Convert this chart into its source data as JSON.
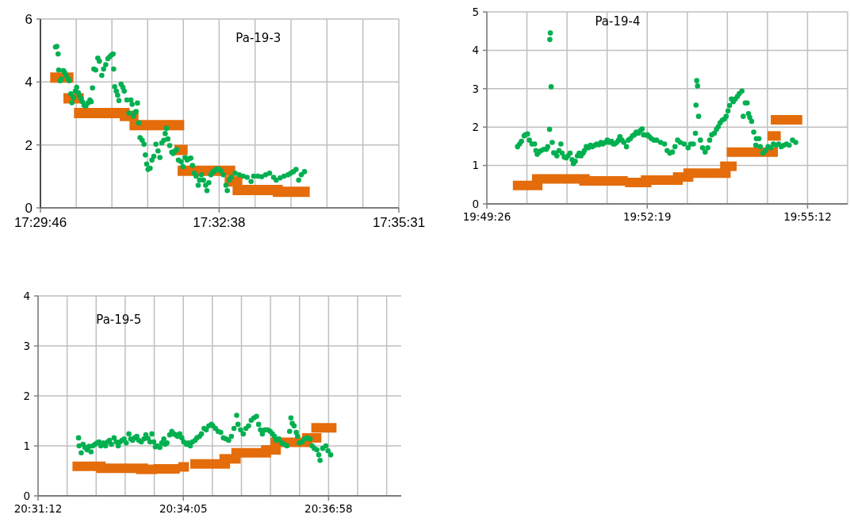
{
  "chart_data": [
    {
      "type": "scatter",
      "annotations": [
        "Pa-19-3"
      ],
      "grid": true,
      "xlim": [
        17.49611,
        17.59194
      ],
      "ylim": [
        0,
        6
      ],
      "yticks": [
        0,
        2,
        4,
        6
      ],
      "xticks": [
        {
          "value": 17.49611,
          "label": "17:29:46"
        },
        {
          "value": 17.50567,
          "label": null
        },
        {
          "value": 17.51522,
          "label": null
        },
        {
          "value": 17.52478,
          "label": null
        },
        {
          "value": 17.53433,
          "label": null
        },
        {
          "value": 17.54389,
          "label": "17:32:38"
        },
        {
          "value": 17.5535,
          "label": null
        },
        {
          "value": 17.56311,
          "label": null
        },
        {
          "value": 17.57272,
          "label": null
        },
        {
          "value": 17.58233,
          "label": null
        },
        {
          "value": 17.59194,
          "label": "17:35:31"
        }
      ],
      "series": [
        {
          "type": "line",
          "marker": "none",
          "color": "#e46c0a",
          "x": [
            17.49872,
            17.50494
          ],
          "values": [
            4.14,
            4.14
          ]
        },
        {
          "type": "line",
          "marker": "none",
          "color": "#e46c0a",
          "x": [
            17.50226,
            17.5077
          ],
          "values": [
            3.48,
            3.48
          ]
        },
        {
          "type": "line",
          "marker": "none",
          "color": "#e46c0a",
          "x": [
            17.50509,
            17.51993
          ],
          "values": [
            3.01,
            3.01
          ]
        },
        {
          "type": "line",
          "marker": "none",
          "color": "#e46c0a",
          "x": [
            17.51731,
            17.52233
          ],
          "values": [
            2.92,
            2.92
          ]
        },
        {
          "type": "line",
          "marker": "none",
          "color": "#e46c0a",
          "x": [
            17.51993,
            17.53455
          ],
          "values": [
            2.63,
            2.63
          ]
        },
        {
          "type": "line",
          "marker": "none",
          "color": "#e46c0a",
          "x": [
            17.53194,
            17.53547
          ],
          "values": [
            1.84,
            1.84
          ]
        },
        {
          "type": "line",
          "marker": "none",
          "color": "#e46c0a",
          "x": [
            17.53279,
            17.54819
          ],
          "values": [
            1.18,
            1.18
          ]
        },
        {
          "type": "line",
          "marker": "none",
          "color": "#e46c0a",
          "x": [
            17.54537,
            17.5501
          ],
          "values": [
            0.84,
            0.84
          ]
        },
        {
          "type": "line",
          "marker": "none",
          "color": "#e46c0a",
          "x": [
            17.54749,
            17.56091
          ],
          "values": [
            0.57,
            0.57
          ]
        },
        {
          "type": "line",
          "marker": "none",
          "color": "#e46c0a",
          "x": [
            17.55823,
            17.56812
          ],
          "values": [
            0.51,
            0.51
          ]
        },
        {
          "marker": "circle",
          "color": "#00b050",
          "x": [
            17.50014,
            17.50049,
            17.50084,
            17.50099,
            17.50141,
            17.50169,
            17.50226,
            17.50261,
            17.50297,
            17.50353,
            17.50381,
            17.50424,
            17.50452,
            17.50494,
            17.50544,
            17.50579,
            17.50622,
            17.5065,
            17.50692,
            17.50735,
            17.50777,
            17.50827,
            17.50876,
            17.50933,
            17.50968,
            17.51003,
            17.51039,
            17.51088,
            17.51145,
            17.51187,
            17.51251,
            17.513,
            17.51357,
            17.51413,
            17.51463,
            17.51512,
            17.51554,
            17.51569,
            17.51597,
            17.51639,
            17.51675,
            17.5171,
            17.51766,
            17.51816,
            17.51851,
            17.51922,
            17.51978,
            17.52028,
            17.52063,
            17.52099,
            17.52134,
            17.52169,
            17.52205,
            17.5224,
            17.52275,
            17.52332,
            17.52381,
            17.52417,
            17.52452,
            17.52487,
            17.52544,
            17.52593,
            17.52643,
            17.52699,
            17.52756,
            17.52805,
            17.52855,
            17.52911,
            17.52947,
            17.52982,
            17.53017,
            17.53067,
            17.53123,
            17.53159,
            17.53208,
            17.53251,
            17.533,
            17.53371,
            17.5342,
            17.53477,
            17.53533,
            17.53583,
            17.53632,
            17.53675,
            17.53724,
            17.53773,
            17.5383,
            17.53865,
            17.53915,
            17.53971,
            17.54028,
            17.54063,
            17.54113,
            17.54169,
            17.54219,
            17.54268,
            17.54325,
            17.54395,
            17.54431,
            17.54501,
            17.54572,
            17.54607,
            17.54664,
            17.54713,
            17.54819,
            17.54925,
            17.55031,
            17.55137,
            17.55243,
            17.55314,
            17.5542,
            17.55526,
            17.55632,
            17.55738,
            17.55844,
            17.55915,
            17.56021,
            17.56127,
            17.56233,
            17.56303,
            17.56374,
            17.56445,
            17.56515,
            17.56586,
            17.56671
          ],
          "values": [
            5.11,
            5.13,
            4.89,
            4.38,
            4.04,
            4.09,
            4.36,
            4.3,
            4.21,
            4.09,
            4.04,
            3.62,
            3.34,
            3.5,
            3.71,
            3.83,
            3.66,
            3.58,
            3.48,
            3.37,
            3.26,
            3.24,
            3.33,
            3.43,
            3.37,
            3.81,
            4.41,
            4.38,
            4.76,
            4.66,
            4.21,
            4.41,
            4.55,
            4.74,
            4.8,
            4.86,
            4.89,
            4.41,
            3.85,
            3.71,
            3.58,
            3.41,
            3.93,
            3.83,
            3.71,
            3.43,
            3.01,
            3.43,
            3.29,
            2.91,
            3.03,
            3.06,
            3.33,
            2.7,
            2.23,
            2.15,
            2.02,
            1.68,
            1.39,
            1.22,
            1.26,
            1.52,
            1.64,
            2.02,
            1.81,
            1.6,
            2.06,
            2.15,
            2.36,
            2.53,
            2.19,
            1.98,
            1.77,
            1.73,
            1.81,
            1.85,
            1.52,
            1.47,
            1.31,
            1.6,
            1.52,
            1.56,
            1.58,
            1.35,
            1.1,
            1.01,
            0.72,
            0.88,
            1.05,
            0.88,
            0.72,
            0.55,
            0.8,
            1.05,
            1.14,
            1.18,
            1.24,
            1.22,
            1.18,
            1.05,
            0.72,
            0.55,
            0.88,
            0.97,
            1.1,
            1.05,
            1.01,
            0.97,
            0.84,
            1.01,
            1.01,
            0.99,
            1.05,
            1.1,
            0.97,
            0.88,
            0.95,
            1.01,
            1.05,
            1.1,
            1.15,
            1.22,
            0.88,
            1.05,
            1.15
          ]
        }
      ]
    },
    {
      "type": "scatter",
      "annotations": [
        "Pa-19-4"
      ],
      "grid": true,
      "xlim": [
        19.82389,
        19.93201
      ],
      "ylim": [
        0,
        5
      ],
      "yticks": [
        0,
        1,
        2,
        3,
        4,
        5
      ],
      "xticks": [
        {
          "value": 19.82389,
          "label": "19:49:26"
        },
        {
          "value": 19.8359,
          "label": null
        },
        {
          "value": 19.84792,
          "label": null
        },
        {
          "value": 19.85993,
          "label": null
        },
        {
          "value": 19.87194,
          "label": "19:52:19"
        },
        {
          "value": 19.88396,
          "label": null
        },
        {
          "value": 19.89597,
          "label": null
        },
        {
          "value": 19.90799,
          "label": null
        },
        {
          "value": 19.92,
          "label": "19:55:12"
        },
        {
          "value": 19.93201,
          "label": null
        }
      ],
      "series": [
        {
          "type": "line",
          "marker": "none",
          "color": "#e46c0a",
          "x": [
            19.83168,
            19.84056
          ],
          "values": [
            0.48,
            0.48
          ]
        },
        {
          "type": "line",
          "marker": "none",
          "color": "#e46c0a",
          "x": [
            19.83742,
            19.85472
          ],
          "values": [
            0.65,
            0.65
          ]
        },
        {
          "type": "line",
          "marker": "none",
          "color": "#e46c0a",
          "x": [
            19.85157,
            19.86612
          ],
          "values": [
            0.6,
            0.6
          ]
        },
        {
          "type": "line",
          "marker": "none",
          "color": "#e46c0a",
          "x": [
            19.86533,
            19.8732
          ],
          "values": [
            0.56,
            0.56
          ]
        },
        {
          "type": "line",
          "marker": "none",
          "color": "#e46c0a",
          "x": [
            19.87005,
            19.88263
          ],
          "values": [
            0.62,
            0.62
          ]
        },
        {
          "type": "line",
          "marker": "none",
          "color": "#e46c0a",
          "x": [
            19.87965,
            19.88578
          ],
          "values": [
            0.7,
            0.7
          ]
        },
        {
          "type": "line",
          "marker": "none",
          "color": "#e46c0a",
          "x": [
            19.88279,
            19.89695
          ],
          "values": [
            0.8,
            0.8
          ]
        },
        {
          "type": "line",
          "marker": "none",
          "color": "#e46c0a",
          "x": [
            19.8938,
            19.89876
          ],
          "values": [
            0.98,
            0.98
          ]
        },
        {
          "type": "line",
          "marker": "none",
          "color": "#e46c0a",
          "x": [
            19.89577,
            19.9111
          ],
          "values": [
            1.35,
            1.35
          ]
        },
        {
          "type": "line",
          "marker": "none",
          "color": "#e46c0a",
          "x": [
            19.90803,
            19.91197
          ],
          "values": [
            1.77,
            1.77
          ]
        },
        {
          "type": "line",
          "marker": "none",
          "color": "#e46c0a",
          "x": [
            19.90898,
            19.91842
          ],
          "values": [
            2.19,
            2.19
          ]
        },
        {
          "marker": "circle",
          "color": "#00b050",
          "x": [
            19.83309,
            19.83372,
            19.83427,
            19.83506,
            19.83545,
            19.83608,
            19.83663,
            19.83742,
            19.8382,
            19.8386,
            19.83899,
            19.83954,
            19.84017,
            19.84095,
            19.84174,
            19.84213,
            19.84269,
            19.84276,
            19.84292,
            19.84316,
            19.84347,
            19.84394,
            19.84449,
            19.84489,
            19.84552,
            19.84607,
            19.84646,
            19.84709,
            19.84764,
            19.84819,
            19.84882,
            19.84945,
            19.84984,
            19.85039,
            19.85102,
            19.85157,
            19.85212,
            19.85275,
            19.85314,
            19.85369,
            19.85432,
            19.85495,
            19.8555,
            19.85629,
            19.85684,
            19.85747,
            19.8581,
            19.85865,
            19.85944,
            19.85999,
            19.86062,
            19.86124,
            19.86179,
            19.86219,
            19.86282,
            19.86337,
            19.86376,
            19.86439,
            19.86494,
            19.86573,
            19.86628,
            19.86691,
            19.86754,
            19.86809,
            19.86864,
            19.86927,
            19.86989,
            19.87044,
            19.87084,
            19.87147,
            19.87202,
            19.87257,
            19.8732,
            19.87398,
            19.87477,
            19.87595,
            19.87713,
            19.87792,
            19.8787,
            19.87949,
            19.88027,
            19.88106,
            19.88185,
            19.88303,
            19.88421,
            19.88499,
            19.88578,
            19.88641,
            19.88657,
            19.8868,
            19.88704,
            19.88735,
            19.8879,
            19.88853,
            19.88932,
            19.8901,
            19.89066,
            19.89128,
            19.89207,
            19.8927,
            19.89325,
            19.8938,
            19.89443,
            19.89506,
            19.89561,
            19.89616,
            19.89663,
            19.89718,
            19.89773,
            19.89836,
            19.89899,
            19.89954,
            19.90033,
            19.90072,
            19.90135,
            19.9019,
            19.90229,
            19.90269,
            19.90324,
            19.90387,
            19.9045,
            19.90465,
            19.90544,
            19.90583,
            19.90662,
            19.90741,
            19.90819,
            19.90898,
            19.90977,
            19.91056,
            19.91134,
            19.91213,
            19.91291,
            19.9137,
            19.91449,
            19.91551,
            19.91645
          ],
          "values": [
            1.49,
            1.56,
            1.63,
            1.77,
            1.8,
            1.82,
            1.66,
            1.56,
            1.56,
            1.39,
            1.29,
            1.35,
            1.39,
            1.42,
            1.42,
            1.49,
            1.94,
            4.28,
            4.45,
            3.05,
            1.6,
            1.33,
            1.32,
            1.25,
            1.39,
            1.56,
            1.32,
            1.22,
            1.2,
            1.25,
            1.32,
            1.15,
            1.05,
            1.11,
            1.25,
            1.32,
            1.25,
            1.32,
            1.39,
            1.49,
            1.46,
            1.53,
            1.49,
            1.53,
            1.56,
            1.54,
            1.6,
            1.56,
            1.6,
            1.66,
            1.6,
            1.63,
            1.56,
            1.56,
            1.6,
            1.66,
            1.75,
            1.66,
            1.6,
            1.49,
            1.66,
            1.7,
            1.77,
            1.8,
            1.87,
            1.84,
            1.91,
            1.95,
            1.8,
            1.79,
            1.8,
            1.75,
            1.7,
            1.66,
            1.66,
            1.6,
            1.56,
            1.39,
            1.32,
            1.35,
            1.49,
            1.66,
            1.6,
            1.56,
            1.46,
            1.56,
            1.56,
            1.84,
            2.57,
            3.21,
            3.07,
            2.28,
            1.66,
            1.46,
            1.35,
            1.46,
            1.66,
            1.8,
            1.84,
            1.94,
            2.01,
            2.11,
            2.18,
            2.21,
            2.28,
            2.42,
            2.56,
            2.73,
            2.66,
            2.73,
            2.8,
            2.87,
            2.94,
            2.28,
            2.63,
            2.63,
            2.35,
            2.25,
            2.15,
            1.87,
            1.53,
            1.7,
            1.7,
            1.49,
            1.32,
            1.39,
            1.49,
            1.46,
            1.56,
            1.53,
            1.56,
            1.49,
            1.53,
            1.56,
            1.53,
            1.66,
            1.6
          ]
        }
      ]
    },
    {
      "type": "scatter",
      "annotations": [
        "Pa-19-5"
      ],
      "grid": true,
      "xlim": [
        20.52,
        20.64014
      ],
      "ylim": [
        0,
        4
      ],
      "yticks": [
        0,
        1,
        2,
        3,
        4
      ],
      "xticks": [
        {
          "value": 20.52,
          "label": "20:31:12"
        },
        {
          "value": 20.52961,
          "label": null
        },
        {
          "value": 20.53922,
          "label": null
        },
        {
          "value": 20.54883,
          "label": null
        },
        {
          "value": 20.55845,
          "label": null
        },
        {
          "value": 20.56806,
          "label": "20:34:05"
        },
        {
          "value": 20.57767,
          "label": null
        },
        {
          "value": 20.58728,
          "label": null
        },
        {
          "value": 20.59689,
          "label": null
        },
        {
          "value": 20.6065,
          "label": null
        },
        {
          "value": 20.61611,
          "label": "20:36:58"
        },
        {
          "value": 20.62572,
          "label": null
        },
        {
          "value": 20.63533,
          "label": null
        }
      ],
      "series": [
        {
          "type": "line",
          "marker": "none",
          "color": "#e46c0a",
          "x": [
            20.53139,
            20.54234
          ],
          "values": [
            0.59,
            0.59
          ]
        },
        {
          "type": "line",
          "marker": "none",
          "color": "#e46c0a",
          "x": [
            20.53927,
            20.55635
          ],
          "values": [
            0.55,
            0.55
          ]
        },
        {
          "type": "line",
          "marker": "none",
          "color": "#e46c0a",
          "x": [
            20.55241,
            20.55942
          ],
          "values": [
            0.53,
            0.53
          ]
        },
        {
          "type": "line",
          "marker": "none",
          "color": "#e46c0a",
          "x": [
            20.55811,
            20.56687
          ],
          "values": [
            0.54,
            0.54
          ]
        },
        {
          "type": "line",
          "marker": "none",
          "color": "#e46c0a",
          "x": [
            20.56643,
            20.56993
          ],
          "values": [
            0.58,
            0.58
          ]
        },
        {
          "type": "line",
          "marker": "none",
          "color": "#e46c0a",
          "x": [
            20.57037,
            20.58351
          ],
          "values": [
            0.64,
            0.64
          ]
        },
        {
          "type": "line",
          "marker": "none",
          "color": "#e46c0a",
          "x": [
            20.58001,
            20.58701
          ],
          "values": [
            0.74,
            0.74
          ]
        },
        {
          "type": "line",
          "marker": "none",
          "color": "#e46c0a",
          "x": [
            20.58395,
            20.59709
          ],
          "values": [
            0.86,
            0.86
          ]
        },
        {
          "type": "line",
          "marker": "none",
          "color": "#e46c0a",
          "x": [
            20.59376,
            20.60033
          ],
          "values": [
            0.92,
            0.92
          ]
        },
        {
          "type": "line",
          "marker": "none",
          "color": "#e46c0a",
          "x": [
            20.59691,
            20.61067
          ],
          "values": [
            1.07,
            1.07
          ]
        },
        {
          "type": "line",
          "marker": "none",
          "color": "#e46c0a",
          "x": [
            20.60734,
            20.61373
          ],
          "values": [
            1.16,
            1.16
          ]
        },
        {
          "type": "line",
          "marker": "none",
          "color": "#e46c0a",
          "x": [
            20.6104,
            20.61873
          ],
          "values": [
            1.36,
            1.36
          ]
        },
        {
          "marker": "circle",
          "color": "#00b050",
          "x": [
            20.5334,
            20.53358,
            20.53428,
            20.53489,
            20.53551,
            20.53621,
            20.53691,
            20.53752,
            20.53813,
            20.53883,
            20.53953,
            20.54015,
            20.54076,
            20.54164,
            20.54234,
            20.54304,
            20.54365,
            20.54427,
            20.54514,
            20.54584,
            20.54654,
            20.54716,
            20.54777,
            20.54847,
            20.54917,
            20.55005,
            20.55066,
            20.55127,
            20.55197,
            20.55267,
            20.55329,
            20.55416,
            20.55504,
            20.55565,
            20.55635,
            20.55705,
            20.55767,
            20.55828,
            20.55881,
            20.55942,
            20.5603,
            20.56091,
            20.56161,
            20.56205,
            20.56266,
            20.56354,
            20.56424,
            20.56494,
            20.56555,
            20.56617,
            20.56687,
            20.56757,
            20.56818,
            20.56906,
            20.56967,
            20.57037,
            20.57107,
            20.57195,
            20.57256,
            20.57344,
            20.57405,
            20.57493,
            20.57563,
            20.5765,
            20.57738,
            20.57782,
            20.57869,
            20.57957,
            20.58044,
            20.58132,
            20.5822,
            20.58307,
            20.58395,
            20.58482,
            20.5857,
            20.58614,
            20.58701,
            20.58789,
            20.58877,
            20.58964,
            20.59052,
            20.59139,
            20.59227,
            20.59297,
            20.59358,
            20.5942,
            20.59507,
            20.59595,
            20.59683,
            20.59753,
            20.59823,
            20.59884,
            20.59972,
            20.60059,
            20.60147,
            20.60234,
            20.60322,
            20.60366,
            20.6041,
            20.60471,
            20.60541,
            20.60585,
            20.60646,
            20.60734,
            20.60821,
            20.60909,
            20.60997,
            20.61067,
            20.61137,
            20.61224,
            20.61286,
            20.61329,
            20.61417,
            20.61522,
            20.61592,
            20.6168
          ],
          "values": [
            1.16,
            1.0,
            0.86,
            1.03,
            0.97,
            0.92,
            0.99,
            0.88,
            1.0,
            1.03,
            1.06,
            1.08,
            1.0,
            1.06,
            1.0,
            1.08,
            1.11,
            1.03,
            1.16,
            1.08,
            1.0,
            1.08,
            1.11,
            1.14,
            1.06,
            1.24,
            1.14,
            1.11,
            1.16,
            1.19,
            1.11,
            1.08,
            1.14,
            1.22,
            1.15,
            1.08,
            1.24,
            1.08,
            0.98,
            1.0,
            0.97,
            1.06,
            1.14,
            1.03,
            1.06,
            1.22,
            1.29,
            1.24,
            1.22,
            1.19,
            1.24,
            1.16,
            1.08,
            1.03,
            1.06,
            1.0,
            1.08,
            1.11,
            1.16,
            1.19,
            1.24,
            1.35,
            1.32,
            1.4,
            1.43,
            1.4,
            1.35,
            1.29,
            1.27,
            1.16,
            1.14,
            1.11,
            1.19,
            1.35,
            1.61,
            1.43,
            1.32,
            1.24,
            1.35,
            1.4,
            1.51,
            1.56,
            1.59,
            1.43,
            1.32,
            1.24,
            1.32,
            1.32,
            1.29,
            1.24,
            1.19,
            1.11,
            1.14,
            1.06,
            1.03,
            1.0,
            1.29,
            1.56,
            1.45,
            1.4,
            1.27,
            1.19,
            1.06,
            1.08,
            1.14,
            1.16,
            1.14,
            1.0,
            0.95,
            0.92,
            0.82,
            0.71,
            0.95,
            1.0,
            0.9,
            0.82
          ]
        }
      ]
    }
  ]
}
